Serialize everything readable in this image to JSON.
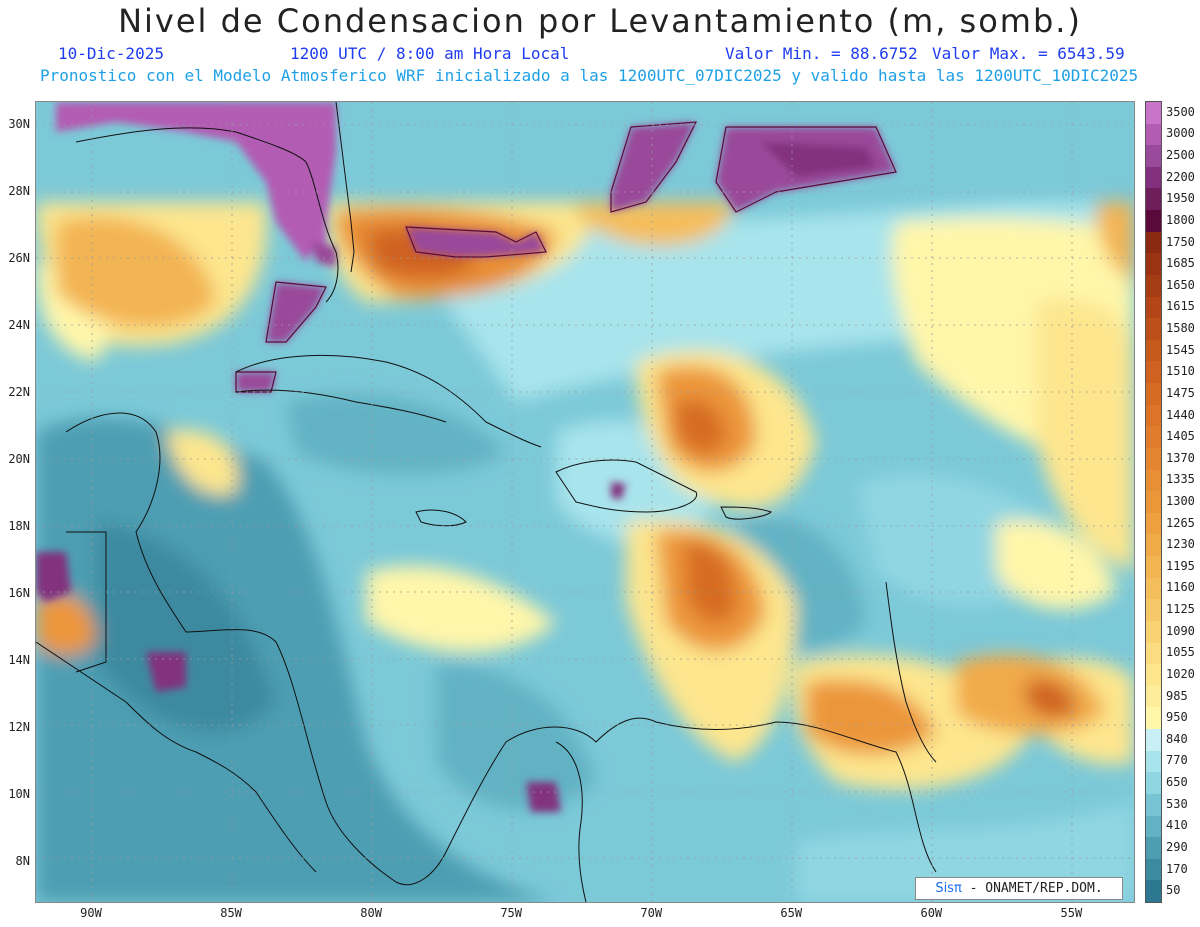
{
  "header": {
    "title": "Nivel de Condensacion por Levantamiento (m, somb.)",
    "date": "10-Dic-2025",
    "time": "1200 UTC / 8:00 am Hora Local",
    "valor_min": "Valor Min. = 88.6752",
    "valor_max": "Valor Max. = 6543.59",
    "description": "Pronostico con el Modelo Atmosferico WRF inicializado a las 1200UTC_07DIC2025 y valido hasta las  1200UTC_10DIC2025"
  },
  "map": {
    "lat_labels": [
      "30N",
      "28N",
      "26N",
      "24N",
      "22N",
      "20N",
      "18N",
      "16N",
      "14N",
      "12N",
      "10N",
      "8N"
    ],
    "lon_labels": [
      "90W",
      "85W",
      "80W",
      "75W",
      "70W",
      "65W",
      "60W",
      "55W"
    ],
    "extent": {
      "lon_min": -92,
      "lon_max": -52.8,
      "lat_min": 6.8,
      "lat_max": 30.7
    }
  },
  "credit": {
    "brand": "Sisπ",
    "text": "- ONAMET/REP.DOM."
  },
  "legend": {
    "levels": [
      {
        "label": "3500",
        "color": "#c874c8"
      },
      {
        "label": "3000",
        "color": "#b35cb3"
      },
      {
        "label": "2500",
        "color": "#9a4a9a"
      },
      {
        "label": "2200",
        "color": "#82307e"
      },
      {
        "label": "1950",
        "color": "#6e1e5a"
      },
      {
        "label": "1800",
        "color": "#5a0a3a"
      },
      {
        "label": "1750",
        "color": "#8b2a10"
      },
      {
        "label": "1685",
        "color": "#993312"
      },
      {
        "label": "1650",
        "color": "#a63c14"
      },
      {
        "label": "1615",
        "color": "#b24616"
      },
      {
        "label": "1580",
        "color": "#bc5018"
      },
      {
        "label": "1545",
        "color": "#c6591c"
      },
      {
        "label": "1510",
        "color": "#cf6220"
      },
      {
        "label": "1475",
        "color": "#d66c24"
      },
      {
        "label": "1440",
        "color": "#dc7428"
      },
      {
        "label": "1405",
        "color": "#e07c2c"
      },
      {
        "label": "1370",
        "color": "#e48630"
      },
      {
        "label": "1335",
        "color": "#e88e34"
      },
      {
        "label": "1300",
        "color": "#ec963a"
      },
      {
        "label": "1265",
        "color": "#efa040"
      },
      {
        "label": "1230",
        "color": "#f1aa48"
      },
      {
        "label": "1195",
        "color": "#f3b452"
      },
      {
        "label": "1160",
        "color": "#f5be5c"
      },
      {
        "label": "1125",
        "color": "#f7c868"
      },
      {
        "label": "1090",
        "color": "#f9d274"
      },
      {
        "label": "1055",
        "color": "#fbdc80"
      },
      {
        "label": "1020",
        "color": "#fde68e"
      },
      {
        "label": "985",
        "color": "#feee9c"
      },
      {
        "label": "950",
        "color": "#fff6aa"
      },
      {
        "label": "840",
        "color": "#c8f0f4"
      },
      {
        "label": "770",
        "color": "#a8e4ec"
      },
      {
        "label": "650",
        "color": "#90d6e2"
      },
      {
        "label": "530",
        "color": "#78c4d4"
      },
      {
        "label": "410",
        "color": "#62b2c4"
      },
      {
        "label": "290",
        "color": "#4e9eb2"
      },
      {
        "label": "170",
        "color": "#3c8aa0"
      },
      {
        "label": "50",
        "color": "#2c7890"
      }
    ]
  }
}
